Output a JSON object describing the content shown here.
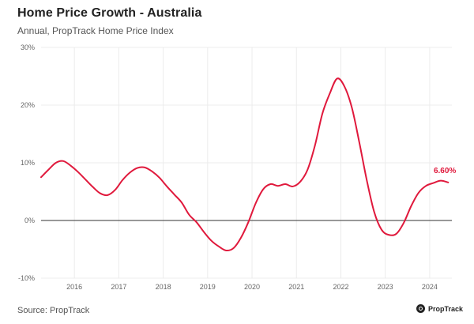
{
  "header": {
    "title": "Home Price Growth - Australia",
    "subtitle": "Annual, PropTrack Home Price Index"
  },
  "footer": {
    "source": "Source: PropTrack",
    "brand": "PropTrack",
    "brand_icon": "proptrack-logo-icon"
  },
  "colors": {
    "line": "#e0193c",
    "grid": "#ececec",
    "zero_line": "#333333",
    "tick_text": "#666666"
  },
  "chart_data": {
    "type": "line",
    "title": "Home Price Growth - Australia",
    "subtitle": "Annual, PropTrack Home Price Index",
    "ylim": [
      -10,
      30
    ],
    "xlim": [
      "2015-04",
      "2024-07"
    ],
    "y_ticks": [
      -10,
      0,
      10,
      20,
      30
    ],
    "y_tick_labels": [
      "-10%",
      "0%",
      "10%",
      "20%",
      "30%"
    ],
    "x_ticks": [
      "2016-01",
      "2017-01",
      "2018-01",
      "2019-01",
      "2020-01",
      "2021-01",
      "2022-01",
      "2023-01",
      "2024-01"
    ],
    "x_tick_labels": [
      "2016",
      "2017",
      "2018",
      "2019",
      "2020",
      "2021",
      "2022",
      "2023",
      "2024"
    ],
    "grid": true,
    "series": [
      {
        "color": "#e0193c",
        "end_label": "6.60%",
        "points": [
          [
            "2015-04",
            7.5
          ],
          [
            "2015-06",
            8.8
          ],
          [
            "2015-08",
            10.0
          ],
          [
            "2015-10",
            10.3
          ],
          [
            "2015-12",
            9.5
          ],
          [
            "2016-02",
            8.4
          ],
          [
            "2016-04",
            7.1
          ],
          [
            "2016-06",
            5.8
          ],
          [
            "2016-08",
            4.7
          ],
          [
            "2016-10",
            4.4
          ],
          [
            "2016-12",
            5.3
          ],
          [
            "2017-02",
            7.0
          ],
          [
            "2017-04",
            8.3
          ],
          [
            "2017-06",
            9.1
          ],
          [
            "2017-08",
            9.2
          ],
          [
            "2017-10",
            8.5
          ],
          [
            "2017-12",
            7.4
          ],
          [
            "2018-02",
            5.9
          ],
          [
            "2018-04",
            4.5
          ],
          [
            "2018-06",
            3.1
          ],
          [
            "2018-08",
            1.0
          ],
          [
            "2018-10",
            -0.3
          ],
          [
            "2018-12",
            -2.0
          ],
          [
            "2019-02",
            -3.5
          ],
          [
            "2019-04",
            -4.5
          ],
          [
            "2019-06",
            -5.2
          ],
          [
            "2019-08",
            -4.8
          ],
          [
            "2019-10",
            -3.0
          ],
          [
            "2019-12",
            -0.3
          ],
          [
            "2020-02",
            3.0
          ],
          [
            "2020-04",
            5.4
          ],
          [
            "2020-06",
            6.3
          ],
          [
            "2020-08",
            6.0
          ],
          [
            "2020-10",
            6.3
          ],
          [
            "2020-12",
            5.9
          ],
          [
            "2021-02",
            6.7
          ],
          [
            "2021-04",
            8.8
          ],
          [
            "2021-06",
            13.0
          ],
          [
            "2021-08",
            18.5
          ],
          [
            "2021-10",
            22.0
          ],
          [
            "2021-12",
            24.6
          ],
          [
            "2022-02",
            23.2
          ],
          [
            "2022-04",
            19.5
          ],
          [
            "2022-06",
            13.5
          ],
          [
            "2022-08",
            7.0
          ],
          [
            "2022-10",
            1.5
          ],
          [
            "2022-12",
            -1.6
          ],
          [
            "2023-02",
            -2.5
          ],
          [
            "2023-04",
            -2.3
          ],
          [
            "2023-06",
            -0.4
          ],
          [
            "2023-08",
            2.5
          ],
          [
            "2023-10",
            4.8
          ],
          [
            "2023-12",
            6.0
          ],
          [
            "2024-02",
            6.5
          ],
          [
            "2024-04",
            6.9
          ],
          [
            "2024-06",
            6.6
          ]
        ]
      }
    ]
  }
}
